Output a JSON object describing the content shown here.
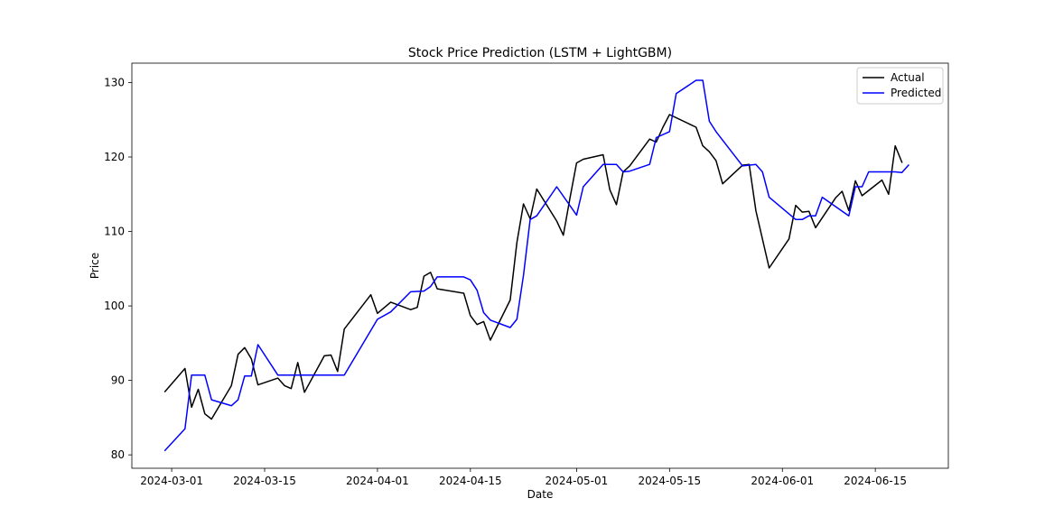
{
  "chart_data": {
    "type": "line",
    "title": "Stock Price Prediction (LSTM + LightGBM)",
    "xlabel": "Date",
    "ylabel": "Price",
    "xlim": [
      "2024-02-24",
      "2024-06-26"
    ],
    "ylim": [
      78.2,
      132.6
    ],
    "x_ticks": [
      "2024-03-01",
      "2024-03-15",
      "2024-04-01",
      "2024-04-15",
      "2024-05-01",
      "2024-05-15",
      "2024-06-01",
      "2024-06-15"
    ],
    "y_ticks": [
      80,
      90,
      100,
      110,
      120,
      130
    ],
    "grid": false,
    "legend_position": "top-right",
    "series": [
      {
        "name": "Actual",
        "color": "#000000",
        "points": [
          [
            "2024-02-29",
            88.5
          ],
          [
            "2024-03-03",
            91.6
          ],
          [
            "2024-03-04",
            86.4
          ],
          [
            "2024-03-05",
            88.8
          ],
          [
            "2024-03-06",
            85.5
          ],
          [
            "2024-03-07",
            84.8
          ],
          [
            "2024-03-10",
            89.3
          ],
          [
            "2024-03-11",
            93.5
          ],
          [
            "2024-03-12",
            94.4
          ],
          [
            "2024-03-13",
            92.9
          ],
          [
            "2024-03-14",
            89.4
          ],
          [
            "2024-03-17",
            90.3
          ],
          [
            "2024-03-18",
            89.3
          ],
          [
            "2024-03-19",
            88.9
          ],
          [
            "2024-03-20",
            92.4
          ],
          [
            "2024-03-21",
            88.4
          ],
          [
            "2024-03-24",
            93.3
          ],
          [
            "2024-03-25",
            93.4
          ],
          [
            "2024-03-26",
            91.2
          ],
          [
            "2024-03-27",
            96.9
          ],
          [
            "2024-03-31",
            101.5
          ],
          [
            "2024-04-01",
            99.0
          ],
          [
            "2024-04-03",
            100.5
          ],
          [
            "2024-04-06",
            99.5
          ],
          [
            "2024-04-07",
            99.8
          ],
          [
            "2024-04-08",
            104.0
          ],
          [
            "2024-04-09",
            104.5
          ],
          [
            "2024-04-10",
            102.3
          ],
          [
            "2024-04-14",
            101.7
          ],
          [
            "2024-04-15",
            98.7
          ],
          [
            "2024-04-16",
            97.5
          ],
          [
            "2024-04-17",
            97.9
          ],
          [
            "2024-04-18",
            95.4
          ],
          [
            "2024-04-21",
            100.8
          ],
          [
            "2024-04-22",
            108.5
          ],
          [
            "2024-04-23",
            113.7
          ],
          [
            "2024-04-24",
            111.7
          ],
          [
            "2024-04-25",
            115.7
          ],
          [
            "2024-04-28",
            111.4
          ],
          [
            "2024-04-29",
            109.5
          ],
          [
            "2024-04-30",
            114.5
          ],
          [
            "2024-05-01",
            119.2
          ],
          [
            "2024-05-02",
            119.7
          ],
          [
            "2024-05-05",
            120.3
          ],
          [
            "2024-05-06",
            115.6
          ],
          [
            "2024-05-07",
            113.6
          ],
          [
            "2024-05-08",
            118.0
          ],
          [
            "2024-05-09",
            118.8
          ],
          [
            "2024-05-12",
            122.4
          ],
          [
            "2024-05-13",
            122.0
          ],
          [
            "2024-05-14",
            124.0
          ],
          [
            "2024-05-15",
            125.7
          ],
          [
            "2024-05-19",
            124.0
          ],
          [
            "2024-05-20",
            121.5
          ],
          [
            "2024-05-21",
            120.7
          ],
          [
            "2024-05-22",
            119.5
          ],
          [
            "2024-05-23",
            116.4
          ],
          [
            "2024-05-26",
            118.9
          ],
          [
            "2024-05-27",
            119.0
          ],
          [
            "2024-05-28",
            112.8
          ],
          [
            "2024-05-30",
            105.1
          ],
          [
            "2024-06-02",
            109.0
          ],
          [
            "2024-06-03",
            113.5
          ],
          [
            "2024-06-04",
            112.6
          ],
          [
            "2024-06-05",
            112.7
          ],
          [
            "2024-06-06",
            110.5
          ],
          [
            "2024-06-09",
            114.5
          ],
          [
            "2024-06-10",
            115.4
          ],
          [
            "2024-06-11",
            112.8
          ],
          [
            "2024-06-12",
            116.8
          ],
          [
            "2024-06-13",
            114.8
          ],
          [
            "2024-06-16",
            116.9
          ],
          [
            "2024-06-17",
            115.0
          ],
          [
            "2024-06-18",
            121.5
          ],
          [
            "2024-06-19",
            119.3
          ]
        ]
      },
      {
        "name": "Predicted",
        "color": "#0000ff",
        "points": [
          [
            "2024-02-29",
            80.6
          ],
          [
            "2024-03-03",
            83.5
          ],
          [
            "2024-03-04",
            90.7
          ],
          [
            "2024-03-06",
            90.7
          ],
          [
            "2024-03-07",
            87.4
          ],
          [
            "2024-03-10",
            86.6
          ],
          [
            "2024-03-11",
            87.4
          ],
          [
            "2024-03-12",
            90.6
          ],
          [
            "2024-03-13",
            90.6
          ],
          [
            "2024-03-14",
            94.8
          ],
          [
            "2024-03-17",
            90.7
          ],
          [
            "2024-03-27",
            90.7
          ],
          [
            "2024-04-01",
            98.2
          ],
          [
            "2024-04-03",
            99.2
          ],
          [
            "2024-04-06",
            101.9
          ],
          [
            "2024-04-08",
            102.0
          ],
          [
            "2024-04-09",
            102.6
          ],
          [
            "2024-04-10",
            103.9
          ],
          [
            "2024-04-14",
            103.9
          ],
          [
            "2024-04-15",
            103.5
          ],
          [
            "2024-04-16",
            102.1
          ],
          [
            "2024-04-17",
            99.1
          ],
          [
            "2024-04-18",
            98.1
          ],
          [
            "2024-04-21",
            97.1
          ],
          [
            "2024-04-22",
            98.2
          ],
          [
            "2024-04-23",
            104.1
          ],
          [
            "2024-04-24",
            111.6
          ],
          [
            "2024-04-25",
            112.1
          ],
          [
            "2024-04-28",
            116.0
          ],
          [
            "2024-05-01",
            112.2
          ],
          [
            "2024-05-02",
            116.0
          ],
          [
            "2024-05-05",
            119.0
          ],
          [
            "2024-05-07",
            119.0
          ],
          [
            "2024-05-08",
            118.0
          ],
          [
            "2024-05-09",
            118.1
          ],
          [
            "2024-05-12",
            119.0
          ],
          [
            "2024-05-13",
            122.6
          ],
          [
            "2024-05-15",
            123.4
          ],
          [
            "2024-05-16",
            128.5
          ],
          [
            "2024-05-19",
            130.3
          ],
          [
            "2024-05-20",
            130.3
          ],
          [
            "2024-05-21",
            124.8
          ],
          [
            "2024-05-22",
            123.4
          ],
          [
            "2024-05-26",
            118.8
          ],
          [
            "2024-05-28",
            119.0
          ],
          [
            "2024-05-29",
            118.0
          ],
          [
            "2024-05-30",
            114.6
          ],
          [
            "2024-06-03",
            111.6
          ],
          [
            "2024-06-04",
            111.6
          ],
          [
            "2024-06-05",
            112.1
          ],
          [
            "2024-06-06",
            112.1
          ],
          [
            "2024-06-07",
            114.6
          ],
          [
            "2024-06-11",
            112.1
          ],
          [
            "2024-06-12",
            116.0
          ],
          [
            "2024-06-13",
            116.0
          ],
          [
            "2024-06-14",
            118.0
          ],
          [
            "2024-06-18",
            118.0
          ],
          [
            "2024-06-19",
            117.9
          ],
          [
            "2024-06-20",
            118.9
          ]
        ]
      }
    ]
  }
}
